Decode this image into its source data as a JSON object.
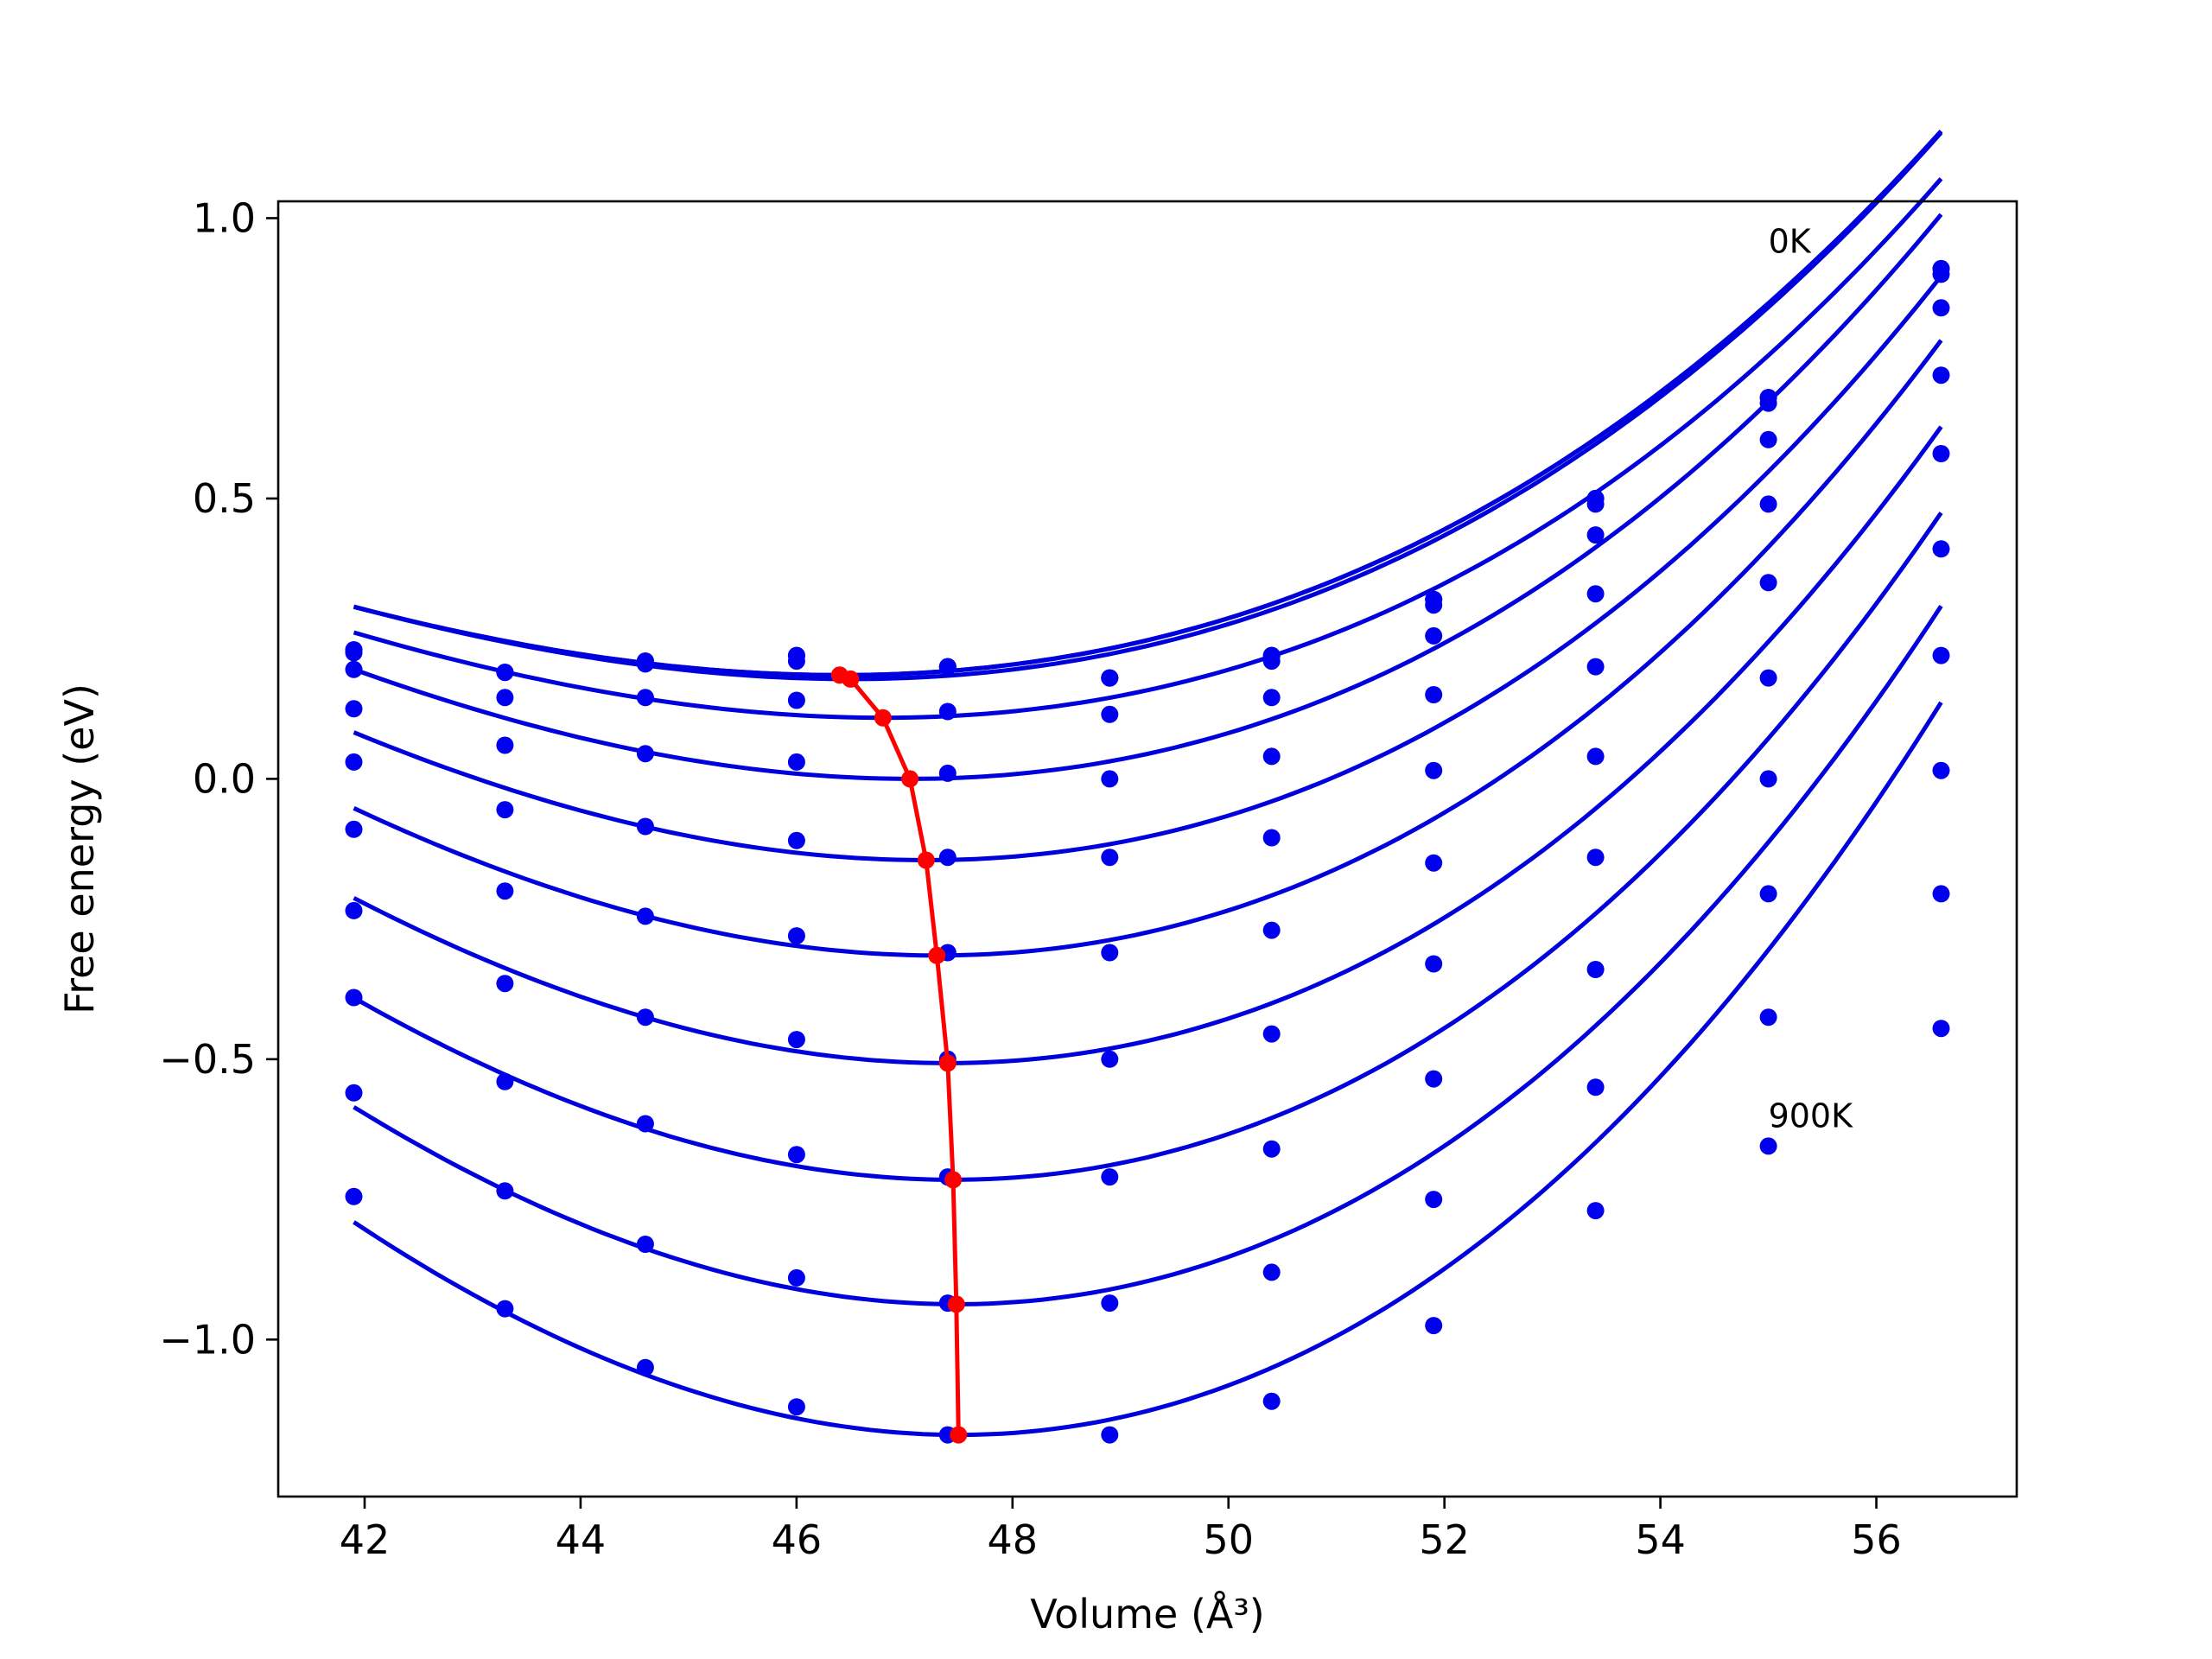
{
  "chart_data": {
    "type": "line",
    "title": "",
    "xlabel": "Volume (Å³)",
    "ylabel": "Free energy (eV)",
    "xlim": [
      41.2,
      57.3
    ],
    "ylim": [
      -1.28,
      1.03
    ],
    "xticks": [
      42,
      44,
      46,
      48,
      50,
      52,
      54,
      56
    ],
    "yticks": [
      -1.0,
      -0.5,
      0.0,
      0.5,
      1.0
    ],
    "xtick_labels": [
      "42",
      "44",
      "46",
      "48",
      "50",
      "52",
      "54",
      "56"
    ],
    "ytick_labels": [
      "−1.0",
      "−0.5",
      "0.0",
      "0.5",
      "1.0"
    ],
    "grid": false,
    "legend": "none",
    "fit_color": "#0000dd",
    "point_color": "#0000ee",
    "min_color": "#ff0000",
    "volumes": [
      41.9,
      43.3,
      44.6,
      46.0,
      47.4,
      48.9,
      50.4,
      51.9,
      53.4,
      55.0,
      56.6
    ],
    "annotations": [
      {
        "text": "0K",
        "x": 55.0,
        "y": 0.96
      },
      {
        "text": "900K",
        "x": 55.0,
        "y": -0.6
      }
    ],
    "series": [
      {
        "points": [
          0.23,
          0.19,
          0.21,
          0.22,
          0.2,
          0.18,
          0.22,
          0.32,
          0.5,
          0.68,
          0.91
        ],
        "fit": {
          "v0": 46.4,
          "e0": 0.185,
          "a": 0.00703,
          "b": 0.000225
        }
      },
      {
        "points": [
          0.23,
          0.19,
          0.21,
          0.22,
          0.2,
          0.18,
          0.22,
          0.32,
          0.5,
          0.68,
          0.91
        ],
        "fit": {
          "v0": 46.4,
          "e0": 0.185,
          "a": 0.00703,
          "b": 0.000225
        }
      },
      {
        "points": [
          0.225,
          0.19,
          0.205,
          0.21,
          0.2,
          0.18,
          0.21,
          0.31,
          0.49,
          0.67,
          0.9
        ],
        "fit": {
          "v0": 46.5,
          "e0": 0.178,
          "a": 0.00718,
          "b": 0.000235
        }
      },
      {
        "points": [
          0.195,
          0.145,
          0.145,
          0.14,
          0.12,
          0.115,
          0.145,
          0.255,
          0.435,
          0.605,
          0.84
        ],
        "fit": {
          "v0": 46.8,
          "e0": 0.109,
          "a": 0.00756,
          "b": 0.00025
        }
      },
      {
        "points": [
          0.125,
          0.06,
          0.045,
          0.03,
          0.01,
          0.0,
          0.04,
          0.15,
          0.33,
          0.49,
          0.72
        ],
        "fit": {
          "v0": 47.05,
          "e0": 0.0,
          "a": 0.00865,
          "b": 0.00025
        }
      },
      {
        "points": [
          0.03,
          -0.055,
          -0.085,
          -0.11,
          -0.14,
          -0.14,
          -0.105,
          0.015,
          0.2,
          0.35,
          0.58
        ],
        "fit": {
          "v0": 47.2,
          "e0": -0.145,
          "a": 0.00944,
          "b": 0.00025
        }
      },
      {
        "points": [
          -0.09,
          -0.2,
          -0.245,
          -0.28,
          -0.31,
          -0.31,
          -0.27,
          -0.15,
          0.04,
          0.18,
          0.41
        ],
        "fit": {
          "v0": 47.3,
          "e0": -0.315,
          "a": 0.01036,
          "b": 0.00025
        }
      },
      {
        "points": [
          -0.235,
          -0.365,
          -0.425,
          -0.465,
          -0.5,
          -0.5,
          -0.455,
          -0.33,
          -0.14,
          0.0,
          0.22
        ],
        "fit": {
          "v0": 47.4,
          "e0": -0.507,
          "a": 0.01111,
          "b": 0.00025
        }
      },
      {
        "points": [
          -0.39,
          -0.54,
          -0.615,
          -0.67,
          -0.71,
          -0.71,
          -0.66,
          -0.535,
          -0.34,
          -0.205,
          0.015
        ],
        "fit": {
          "v0": 47.45,
          "e0": -0.715,
          "a": 0.01192,
          "b": 0.00025
        }
      },
      {
        "points": [
          -0.56,
          -0.735,
          -0.83,
          -0.89,
          -0.935,
          -0.935,
          -0.88,
          -0.75,
          -0.55,
          -0.425,
          -0.205
        ],
        "fit": {
          "v0": 47.48,
          "e0": -0.937,
          "a": 0.01269,
          "b": 0.00025
        }
      },
      {
        "points": [
          -0.745,
          -0.945,
          -1.05,
          -1.12,
          -1.17,
          -1.17,
          -1.11,
          -0.975,
          -0.77,
          -0.655,
          -0.445
        ],
        "fit": {
          "v0": 47.5,
          "e0": -1.17,
          "a": 0.0135,
          "b": 0.00025
        }
      }
    ],
    "minima": {
      "x": [
        46.4,
        46.5,
        46.8,
        47.05,
        47.2,
        47.3,
        47.4,
        47.45,
        47.48,
        47.5
      ],
      "y": [
        0.185,
        0.178,
        0.109,
        0.0,
        -0.145,
        -0.315,
        -0.507,
        -0.715,
        -0.937,
        -1.17
      ]
    }
  }
}
